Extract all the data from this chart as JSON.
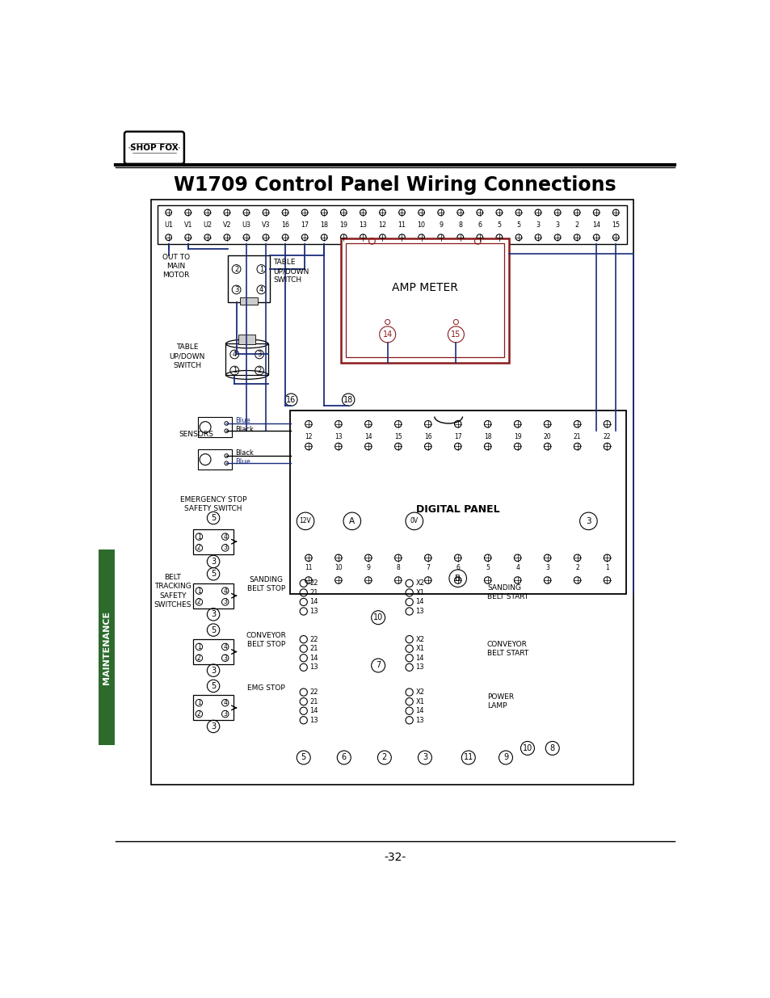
{
  "title": "W1709 Control Panel Wiring Connections",
  "page_number": "-32-",
  "bg": "#ffffff",
  "lc": "#000000",
  "bc": "#1a2d7a",
  "rc": "#8b1a1a",
  "maint_bg": "#2d6b2d",
  "tb_labels": [
    "U1",
    "V1",
    "U2",
    "V2",
    "U3",
    "V3",
    "16",
    "17",
    "18",
    "19",
    "13",
    "12",
    "11",
    "10",
    "9",
    "8",
    "6",
    "5",
    "5",
    "3",
    "3",
    "2",
    "14",
    "15"
  ],
  "dp_top_labels": [
    "12",
    "13",
    "14",
    "15",
    "16",
    "17",
    "18",
    "19",
    "20",
    "21",
    "22"
  ],
  "dp_bot_labels": [
    "11",
    "10",
    "9",
    "8",
    "7",
    "6",
    "5",
    "4",
    "3",
    "2",
    "1"
  ]
}
